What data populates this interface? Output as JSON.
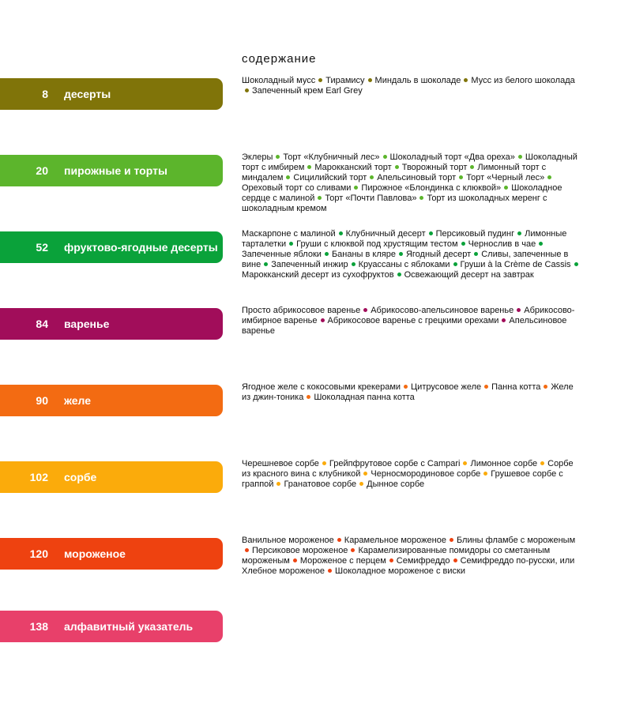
{
  "title": "содержание",
  "sections": [
    {
      "page": "8",
      "label": "десерты",
      "color": "#807409",
      "items": [
        "Шоколадный мусс",
        "Тирамису",
        "Миндаль в шоколаде",
        "Мусс из белого шоколада",
        "Запеченный крем Earl Grey"
      ]
    },
    {
      "page": "20",
      "label": "пирожные и торты",
      "color": "#5cb52c",
      "items": [
        "Эклеры",
        "Торт «Клубничный лес»",
        "Шоколадный торт «Два ореха»",
        "Шоколадный торт с имбирем",
        "Марокканский торт",
        "Творожный торт",
        "Лимонный торт с миндалем",
        "Сицилийский торт",
        "Апельсиновый торт",
        "Торт «Черный лес»",
        "Ореховый торт со сливами",
        "Пирожное «Блондинка с клюквой»",
        "Шоколадное сердце с малиной",
        "Торт «Почти Павлова»",
        "Торт из шоколадных меренг с шоколадным кремом"
      ]
    },
    {
      "page": "52",
      "label": "фруктово-ягодные десерты",
      "color": "#0aa23a",
      "items": [
        "Маскарпоне с малиной",
        "Клубничный десерт",
        "Персиковый пудинг",
        "Лимонные тарталетки",
        "Груши с клюквой под хрустящим тестом",
        "Чернослив в чае",
        "Запеченные яблоки",
        "Бананы в кляре",
        "Ягодный десерт",
        "Сливы, запеченные в вине",
        "Запеченный инжир",
        "Круассаны с яблоками",
        "Груши à la Crème de Cassis",
        "Марокканский десерт из сухофруктов",
        "Освежающий десерт на завтрак"
      ]
    },
    {
      "page": "84",
      "label": "варенье",
      "color": "#a10d5a",
      "items": [
        "Просто абрикосовое варенье",
        "Абрикосово-апельсиновое варенье",
        "Абрикосово-имбирное варенье",
        "Абрикосовое варенье с грецкими орехами",
        "Апельсиновое варенье"
      ]
    },
    {
      "page": "90",
      "label": "желе",
      "color": "#f36b12",
      "items": [
        "Ягодное желе с кокосовыми крекерами",
        "Цитрусовое желе",
        "Панна котта",
        "Желе из джин-тоника",
        "Шоколадная панна котта"
      ]
    },
    {
      "page": "102",
      "label": "сорбе",
      "color": "#fbab0b",
      "items": [
        "Черешневое сорбе",
        "Грейпфрутовое сорбе с Campari",
        "Лимонное сорбе",
        "Сорбе из красного вина с клубникой",
        "Черносмородиновое сорбе",
        "Грушевое сорбе с граппой",
        "Гранатовое сорбе",
        "Дынное сорбе"
      ]
    },
    {
      "page": "120",
      "label": "мороженое",
      "color": "#ee4210",
      "items": [
        "Ванильное мороженое",
        "Карамельное мороженое",
        "Блины фламбе с мороженым",
        "Персиковое мороженое",
        "Карамелизированные помидоры со сметанным мороженым",
        "Мороженое с перцем",
        "Семифреддо",
        "Семифреддо по-русски, или Хлебное мороженое",
        "Шоколадное мороженое с виски"
      ]
    },
    {
      "page": "138",
      "label": "алфавитный указатель",
      "color": "#e8406a",
      "items": []
    }
  ]
}
